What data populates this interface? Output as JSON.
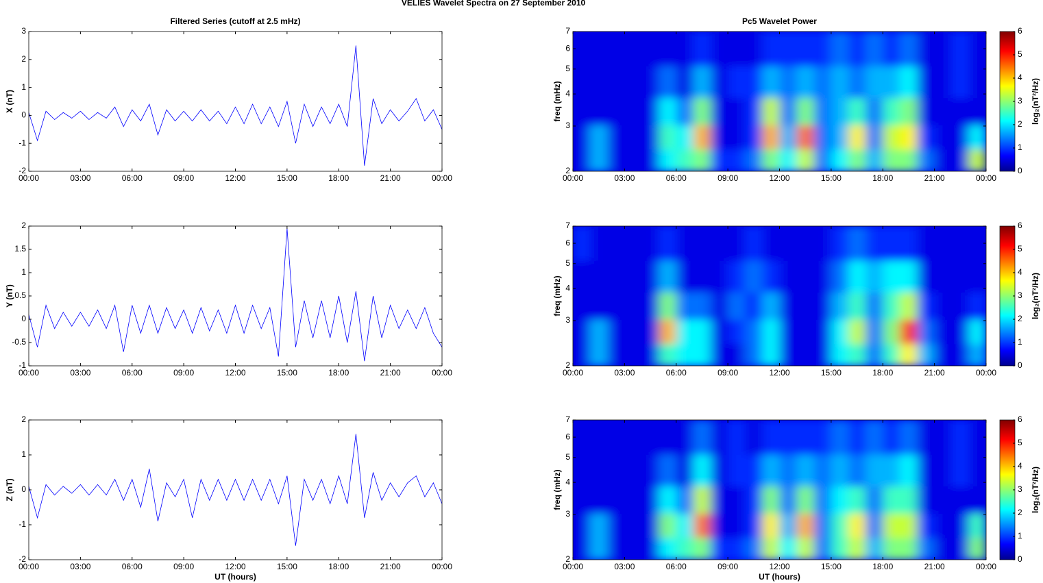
{
  "title": "VELIES Wavelet Spectra on 27 September 2010",
  "chart_data": [
    {
      "type": "line",
      "title": "Filtered Series (cutoff at 2.5 mHz)",
      "ylabel": "X (nT)",
      "x": [
        0,
        0.5,
        1,
        1.5,
        2,
        2.5,
        3,
        3.5,
        4,
        4.5,
        5,
        5.5,
        6,
        6.5,
        7,
        7.5,
        8,
        8.5,
        9,
        9.5,
        10,
        10.5,
        11,
        11.5,
        12,
        12.5,
        13,
        13.5,
        14,
        14.5,
        15,
        15.5,
        16,
        16.5,
        17,
        17.5,
        18,
        18.5,
        19,
        19.5,
        20,
        20.5,
        21,
        21.5,
        22,
        22.5,
        23,
        23.5,
        24
      ],
      "series": [
        {
          "color": "#0000ff",
          "values": [
            0.1,
            -0.9,
            0.15,
            -0.15,
            0.1,
            -0.1,
            0.15,
            -0.15,
            0.1,
            -0.1,
            0.3,
            -0.4,
            0.2,
            -0.2,
            0.4,
            -0.7,
            0.2,
            -0.2,
            0.15,
            -0.2,
            0.2,
            -0.2,
            0.15,
            -0.3,
            0.3,
            -0.3,
            0.4,
            -0.3,
            0.3,
            -0.4,
            0.5,
            -1.0,
            0.4,
            -0.4,
            0.3,
            -0.3,
            0.4,
            -0.4,
            2.5,
            -1.8,
            0.6,
            -0.3,
            0.2,
            -0.2,
            0.15,
            0.6,
            -0.2,
            0.2,
            -0.5
          ]
        }
      ],
      "xlim": [
        0,
        24
      ],
      "xticks": [
        {
          "value": 0,
          "label": "00:00"
        },
        {
          "value": 3,
          "label": "03:00"
        },
        {
          "value": 6,
          "label": "06:00"
        },
        {
          "value": 9,
          "label": "09:00"
        },
        {
          "value": 12,
          "label": "12:00"
        },
        {
          "value": 15,
          "label": "15:00"
        },
        {
          "value": 18,
          "label": "18:00"
        },
        {
          "value": 21,
          "label": "21:00"
        },
        {
          "value": 24,
          "label": "00:00"
        }
      ],
      "ylim": [
        -2,
        3
      ],
      "yticks": [
        -2,
        -1,
        0,
        1,
        2,
        3
      ]
    },
    {
      "type": "heatmap",
      "title": "Pc5 Wavelet Power",
      "ylabel": "freq (mHz)",
      "colorbar_label": "log₂(nT²/Hz)",
      "colormap": "jet",
      "x": [
        0.5,
        1.5,
        2.5,
        3.5,
        4.5,
        5.5,
        6.5,
        7.5,
        8.5,
        9.5,
        10.5,
        11.5,
        12.5,
        13.5,
        14.5,
        15.5,
        16.5,
        17.5,
        18.5,
        19.5,
        20.5,
        21.5,
        22.5,
        23.5
      ],
      "y": [
        2.2,
        2.7,
        3.4,
        4.4,
        6
      ],
      "z": [
        [
          0,
          1.5,
          0,
          0,
          0,
          2,
          2.5,
          3,
          0.5,
          0.5,
          1,
          3,
          2,
          3.5,
          1,
          2,
          3,
          1.5,
          3,
          3,
          1,
          0,
          0,
          3.5
        ],
        [
          0,
          1.5,
          0,
          0,
          0,
          2.5,
          2,
          4.5,
          0,
          0,
          0.5,
          4.5,
          1.5,
          5,
          1,
          1.5,
          4,
          1,
          3.5,
          4,
          0.5,
          0,
          0,
          2
        ],
        [
          0,
          0,
          0,
          0,
          0,
          2,
          1,
          3,
          0,
          0,
          0.5,
          3.5,
          1,
          3,
          1,
          1.5,
          2.5,
          1,
          2.5,
          3,
          0,
          0,
          0,
          0
        ],
        [
          0,
          0,
          0,
          0,
          0,
          1,
          0,
          1.5,
          0,
          0.5,
          0.5,
          1.5,
          1,
          1.5,
          1,
          1.5,
          1,
          1.5,
          1.5,
          2,
          0,
          0,
          0.5,
          0
        ],
        [
          0,
          0,
          0,
          0,
          0,
          0,
          0,
          0.5,
          0,
          0,
          0,
          0.5,
          0.5,
          0.5,
          0.5,
          1,
          0.5,
          1,
          0.5,
          1,
          0,
          0,
          0.5,
          0
        ]
      ],
      "xlim": [
        0,
        24
      ],
      "xticks": [
        {
          "value": 0,
          "label": "00:00"
        },
        {
          "value": 3,
          "label": "03:00"
        },
        {
          "value": 6,
          "label": "06:00"
        },
        {
          "value": 9,
          "label": "09:00"
        },
        {
          "value": 12,
          "label": "12:00"
        },
        {
          "value": 15,
          "label": "15:00"
        },
        {
          "value": 18,
          "label": "18:00"
        },
        {
          "value": 21,
          "label": "21:00"
        },
        {
          "value": 24,
          "label": "00:00"
        }
      ],
      "ylim": [
        2,
        7
      ],
      "yticks": [
        2,
        3,
        4,
        5,
        6,
        7
      ],
      "ylog": true,
      "clim": [
        0,
        6
      ],
      "cticks": [
        0,
        1,
        2,
        3,
        4,
        5,
        6
      ]
    },
    {
      "type": "line",
      "ylabel": "Y (nT)",
      "x": [
        0,
        0.5,
        1,
        1.5,
        2,
        2.5,
        3,
        3.5,
        4,
        4.5,
        5,
        5.5,
        6,
        6.5,
        7,
        7.5,
        8,
        8.5,
        9,
        9.5,
        10,
        10.5,
        11,
        11.5,
        12,
        12.5,
        13,
        13.5,
        14,
        14.5,
        15,
        15.5,
        16,
        16.5,
        17,
        17.5,
        18,
        18.5,
        19,
        19.5,
        20,
        20.5,
        21,
        21.5,
        22,
        22.5,
        23,
        23.5,
        24
      ],
      "series": [
        {
          "color": "#0000ff",
          "values": [
            0.1,
            -0.6,
            0.3,
            -0.2,
            0.15,
            -0.15,
            0.15,
            -0.15,
            0.2,
            -0.2,
            0.3,
            -0.7,
            0.3,
            -0.3,
            0.3,
            -0.3,
            0.25,
            -0.2,
            0.2,
            -0.3,
            0.25,
            -0.25,
            0.2,
            -0.3,
            0.3,
            -0.3,
            0.3,
            -0.2,
            0.25,
            -0.8,
            1.95,
            -0.6,
            0.4,
            -0.4,
            0.4,
            -0.4,
            0.5,
            -0.5,
            0.6,
            -0.9,
            0.5,
            -0.4,
            0.3,
            -0.2,
            0.2,
            -0.2,
            0.25,
            -0.3,
            -0.6
          ]
        }
      ],
      "xlim": [
        0,
        24
      ],
      "xticks": [
        {
          "value": 0,
          "label": "00:00"
        },
        {
          "value": 3,
          "label": "03:00"
        },
        {
          "value": 6,
          "label": "06:00"
        },
        {
          "value": 9,
          "label": "09:00"
        },
        {
          "value": 12,
          "label": "12:00"
        },
        {
          "value": 15,
          "label": "15:00"
        },
        {
          "value": 18,
          "label": "18:00"
        },
        {
          "value": 21,
          "label": "21:00"
        },
        {
          "value": 24,
          "label": "00:00"
        }
      ],
      "ylim": [
        -1,
        2
      ],
      "yticks": [
        -1,
        -0.5,
        0,
        0.5,
        1,
        1.5,
        2
      ]
    },
    {
      "type": "heatmap",
      "ylabel": "freq (mHz)",
      "colorbar_label": "log₂(nT²/Hz)",
      "colormap": "jet",
      "x": [
        0.5,
        1.5,
        2.5,
        3.5,
        4.5,
        5.5,
        6.5,
        7.5,
        8.5,
        9.5,
        10.5,
        11.5,
        12.5,
        13.5,
        14.5,
        15.5,
        16.5,
        17.5,
        18.5,
        19.5,
        20.5,
        21.5,
        22.5,
        23.5
      ],
      "y": [
        2.2,
        2.7,
        3.4,
        4.4,
        6
      ],
      "z": [
        [
          0,
          1.5,
          0,
          0,
          0,
          2.5,
          2,
          2,
          0,
          0,
          1,
          2,
          0,
          0,
          0,
          2,
          2.5,
          1,
          2.5,
          4,
          1.5,
          0,
          0,
          1.5
        ],
        [
          0,
          1.5,
          0,
          0,
          0,
          4.5,
          2,
          2,
          0,
          0.5,
          1,
          2,
          0,
          0,
          0,
          2,
          3.5,
          1,
          3,
          5.5,
          1,
          0,
          0,
          2
        ],
        [
          0,
          0,
          0,
          0,
          0,
          3,
          1,
          1,
          0,
          1,
          0.5,
          1.5,
          0,
          0,
          0,
          1.5,
          2.5,
          1,
          2.5,
          3.5,
          0.5,
          0,
          0,
          0.5
        ],
        [
          0,
          0,
          0,
          0,
          0,
          1.5,
          0,
          0,
          0,
          0.5,
          1,
          0.5,
          0,
          0,
          0,
          1,
          2,
          1.5,
          2,
          2,
          0,
          0,
          0,
          0
        ],
        [
          0.5,
          0,
          0,
          0,
          0,
          0.5,
          0,
          0,
          0,
          0,
          0.5,
          0,
          0,
          0,
          0,
          0.5,
          1,
          0.5,
          0.5,
          0.5,
          0,
          0,
          0,
          0
        ]
      ],
      "xlim": [
        0,
        24
      ],
      "xticks": [
        {
          "value": 0,
          "label": "00:00"
        },
        {
          "value": 3,
          "label": "03:00"
        },
        {
          "value": 6,
          "label": "06:00"
        },
        {
          "value": 9,
          "label": "09:00"
        },
        {
          "value": 12,
          "label": "12:00"
        },
        {
          "value": 15,
          "label": "15:00"
        },
        {
          "value": 18,
          "label": "18:00"
        },
        {
          "value": 21,
          "label": "21:00"
        },
        {
          "value": 24,
          "label": "00:00"
        }
      ],
      "ylim": [
        2,
        7
      ],
      "yticks": [
        2,
        3,
        4,
        5,
        6,
        7
      ],
      "ylog": true,
      "clim": [
        0,
        6
      ],
      "cticks": [
        0,
        1,
        2,
        3,
        4,
        5,
        6
      ]
    },
    {
      "type": "line",
      "ylabel": "Z (nT)",
      "xlabel": "UT (hours)",
      "x": [
        0,
        0.5,
        1,
        1.5,
        2,
        2.5,
        3,
        3.5,
        4,
        4.5,
        5,
        5.5,
        6,
        6.5,
        7,
        7.5,
        8,
        8.5,
        9,
        9.5,
        10,
        10.5,
        11,
        11.5,
        12,
        12.5,
        13,
        13.5,
        14,
        14.5,
        15,
        15.5,
        16,
        16.5,
        17,
        17.5,
        18,
        18.5,
        19,
        19.5,
        20,
        20.5,
        21,
        21.5,
        22,
        22.5,
        23,
        23.5,
        24
      ],
      "series": [
        {
          "color": "#0000ff",
          "values": [
            0.1,
            -0.8,
            0.15,
            -0.15,
            0.1,
            -0.1,
            0.15,
            -0.15,
            0.15,
            -0.15,
            0.3,
            -0.3,
            0.3,
            -0.5,
            0.6,
            -0.9,
            0.2,
            -0.2,
            0.3,
            -0.8,
            0.3,
            -0.3,
            0.3,
            -0.3,
            0.3,
            -0.3,
            0.3,
            -0.3,
            0.3,
            -0.4,
            0.4,
            -1.6,
            0.3,
            -0.3,
            0.3,
            -0.4,
            0.4,
            -0.4,
            1.6,
            -0.8,
            0.5,
            -0.3,
            0.2,
            -0.2,
            0.2,
            0.4,
            -0.2,
            0.2,
            -0.4
          ]
        }
      ],
      "xlim": [
        0,
        24
      ],
      "xticks": [
        {
          "value": 0,
          "label": "00:00"
        },
        {
          "value": 3,
          "label": "03:00"
        },
        {
          "value": 6,
          "label": "06:00"
        },
        {
          "value": 9,
          "label": "09:00"
        },
        {
          "value": 12,
          "label": "12:00"
        },
        {
          "value": 15,
          "label": "15:00"
        },
        {
          "value": 18,
          "label": "18:00"
        },
        {
          "value": 21,
          "label": "21:00"
        },
        {
          "value": 24,
          "label": "00:00"
        }
      ],
      "ylim": [
        -2,
        2
      ],
      "yticks": [
        -2,
        -1,
        0,
        1,
        2
      ]
    },
    {
      "type": "heatmap",
      "ylabel": "freq (mHz)",
      "xlabel": "UT (hours)",
      "colorbar_label": "log₂(nT²/Hz)",
      "colormap": "jet",
      "x": [
        0.5,
        1.5,
        2.5,
        3.5,
        4.5,
        5.5,
        6.5,
        7.5,
        8.5,
        9.5,
        10.5,
        11.5,
        12.5,
        13.5,
        14.5,
        15.5,
        16.5,
        17.5,
        18.5,
        19.5,
        20.5,
        21.5,
        22.5,
        23.5
      ],
      "y": [
        2.2,
        2.7,
        3.4,
        4.4,
        6
      ],
      "z": [
        [
          0,
          1.5,
          0,
          0,
          0,
          2,
          2.5,
          3,
          0.5,
          0.5,
          1,
          3.5,
          2,
          3.5,
          1,
          2.5,
          3.5,
          1.5,
          3,
          3,
          1,
          0,
          0,
          3
        ],
        [
          0,
          1.5,
          0,
          0,
          0,
          3,
          2,
          5,
          0,
          0,
          0.5,
          4,
          1.5,
          4.5,
          1,
          2.5,
          4,
          1,
          3.5,
          3.5,
          0.5,
          0,
          0,
          2.5
        ],
        [
          0,
          0,
          0,
          0,
          0,
          2,
          1,
          3.5,
          0,
          0,
          0.5,
          3,
          1,
          3,
          1,
          2,
          2.5,
          1,
          2.5,
          2.5,
          0,
          0,
          0,
          0
        ],
        [
          0,
          0,
          0,
          0,
          0,
          1,
          0,
          2,
          0,
          0.5,
          0.5,
          1.5,
          1,
          1.5,
          1,
          1.5,
          1,
          1.5,
          1.5,
          2,
          0,
          0,
          0.5,
          0
        ],
        [
          0,
          0,
          0,
          0,
          0,
          0,
          0,
          1,
          0,
          0.5,
          0,
          0.5,
          0.5,
          0.5,
          0.5,
          1,
          0.5,
          1,
          0.5,
          1,
          0,
          0,
          0.5,
          0
        ]
      ],
      "xlim": [
        0,
        24
      ],
      "xticks": [
        {
          "value": 0,
          "label": "00:00"
        },
        {
          "value": 3,
          "label": "03:00"
        },
        {
          "value": 6,
          "label": "06:00"
        },
        {
          "value": 9,
          "label": "09:00"
        },
        {
          "value": 12,
          "label": "12:00"
        },
        {
          "value": 15,
          "label": "15:00"
        },
        {
          "value": 18,
          "label": "18:00"
        },
        {
          "value": 21,
          "label": "21:00"
        },
        {
          "value": 24,
          "label": "00:00"
        }
      ],
      "ylim": [
        2,
        7
      ],
      "yticks": [
        2,
        3,
        4,
        5,
        6,
        7
      ],
      "ylog": true,
      "clim": [
        0,
        6
      ],
      "cticks": [
        0,
        1,
        2,
        3,
        4,
        5,
        6
      ]
    }
  ]
}
